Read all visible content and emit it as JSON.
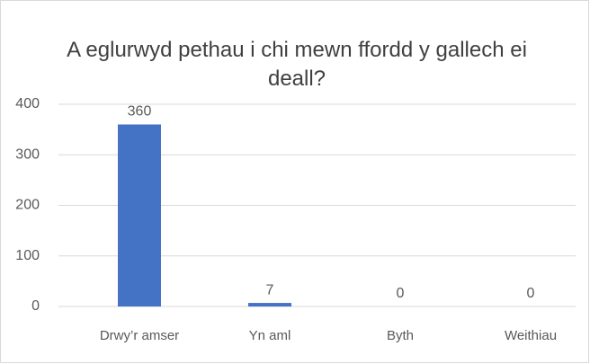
{
  "chart_data": {
    "type": "bar",
    "title": "A eglurwyd pethau i chi mewn ffordd y gallech ei deall?",
    "categories": [
      "Drwy’r amser",
      "Yn aml",
      "Byth",
      "Weithiau"
    ],
    "values": [
      360,
      7,
      0,
      0
    ],
    "color": "#4472c4",
    "ylim": [
      0,
      400
    ],
    "yticks": [
      0,
      100,
      200,
      300,
      400
    ],
    "grid": true,
    "data_labels": true
  }
}
